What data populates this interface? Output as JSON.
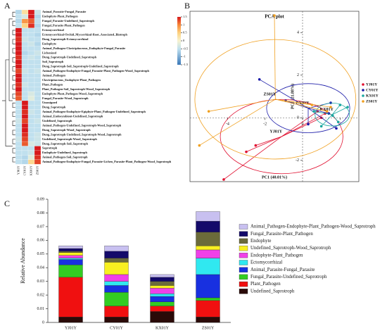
{
  "panel_labels": [
    "A",
    "B",
    "C"
  ],
  "chart_data": [
    {
      "type": "heatmap",
      "rows": [
        "Animal_Parasite-Fungal_Parasite",
        "Endophyte-Plant_Pathogen",
        "Fungal_Parasite-Undefined_Saprotroph",
        "Fungal_Parasite-Plant_Pathogen",
        "Ectomycorrhizal",
        "Ectomycorrhizal-Orchid_Mycorrhizal-Root_Associated_Biotroph",
        "Dung_Saprotroph-Ectomycorrhizal",
        "Endophyte",
        "Animal_Pathogen-Clavicipitaceous_Endophyte-Fungal_Parasite",
        "Lichenized",
        "Dung_Saprotroph-Undefined_Saprotroph",
        "Soil_Saprotroph",
        "Dung_Saprotroph-Soil_Saprotroph-Undefined_Saprotroph",
        "Animal_Pathogen-Endophyte-Fungal_Parasite-Plant_Pathogen-Wood_Saprotroph",
        "Animal_Pathogen",
        "Clavicipitaceous_Endophyte-Plant_Pathogen",
        "Plant_Pathogen",
        "Plant_Pathogen-Soil_Saprotroph-Wood_Saprotroph",
        "Endophyte-Plant_Pathogen-Wood_Saprotroph",
        "Fungal_Parasite-Wood_Saprotroph",
        "Unassigned",
        "Dung_Saprotroph",
        "Animal_Pathogen-Endophyte-Epiphyte-Plant_Pathogen-Undefined_Saprotroph",
        "Animal_Endosymbiont-Undefined_Saprotroph",
        "Undefined_Saprotroph",
        "Animal_Pathogen-Undefined_Saprotroph-Wood_Saprotroph",
        "Dung_Saprotroph-Wood_Saprotroph",
        "Dung_Saprotroph-Undefined_Saprotroph-Wood_Saprotroph",
        "Undefined_Saprotroph-Wood_Saprotroph",
        "Dung_Saprotroph-Soil_Saprotroph",
        "Saprotroph",
        "Endophyte-Undefined_Saprotroph",
        "Animal_Pathogen-Soil_Saprotroph",
        "Animal_Pathogen-Endophyte-Fungal_Parasite-Lichen_Parasite-Plant_Pathogen-Wood_Saprotroph"
      ],
      "columns": [
        "YJ01Y",
        "CY01Y",
        "KX01Y",
        "ZS01Y"
      ],
      "values": [
        [
          -0.6,
          0.3,
          1.5,
          -0.4
        ],
        [
          -0.5,
          -0.3,
          1.5,
          -0.6
        ],
        [
          -0.6,
          0.9,
          1.2,
          -0.5
        ],
        [
          -0.5,
          0.5,
          1.4,
          -0.6
        ],
        [
          1.5,
          -0.5,
          -0.5,
          -0.5
        ],
        [
          1.5,
          -0.5,
          -0.5,
          -0.6
        ],
        [
          1.4,
          -0.4,
          -0.5,
          -0.5
        ],
        [
          1.5,
          -0.5,
          -0.4,
          -0.6
        ],
        [
          1.5,
          -0.5,
          -0.5,
          -0.5
        ],
        [
          1.5,
          -0.6,
          -0.5,
          -0.4
        ],
        [
          1.4,
          -0.5,
          -0.4,
          -0.5
        ],
        [
          1.5,
          -0.5,
          -0.5,
          -0.5
        ],
        [
          1.5,
          -0.5,
          -0.5,
          -0.5
        ],
        [
          1.3,
          -0.4,
          -0.5,
          -0.4
        ],
        [
          1.5,
          -0.5,
          -0.5,
          -0.5
        ],
        [
          1.5,
          -0.5,
          -0.5,
          -0.5
        ],
        [
          1.4,
          -0.4,
          -0.5,
          -0.5
        ],
        [
          1.5,
          -0.5,
          -0.5,
          -0.5
        ],
        [
          1.3,
          -0.5,
          -0.3,
          -0.5
        ],
        [
          1.2,
          -0.5,
          -0.2,
          -0.5
        ],
        [
          -0.5,
          1.5,
          -0.5,
          -0.5
        ],
        [
          -0.5,
          1.5,
          -0.5,
          -0.5
        ],
        [
          -0.5,
          1.4,
          -0.4,
          -0.5
        ],
        [
          -0.5,
          1.5,
          -0.5,
          -0.5
        ],
        [
          -0.4,
          1.3,
          -0.5,
          -0.4
        ],
        [
          -0.5,
          1.5,
          -0.5,
          -0.5
        ],
        [
          -0.5,
          1.5,
          -0.5,
          -0.5
        ],
        [
          -0.5,
          1.4,
          -0.5,
          -0.4
        ],
        [
          -0.4,
          1.3,
          -0.5,
          -0.4
        ],
        [
          -0.5,
          1.2,
          -0.3,
          -0.4
        ],
        [
          -0.5,
          -0.5,
          -0.5,
          1.5
        ],
        [
          -0.5,
          -0.5,
          -0.4,
          1.5
        ],
        [
          -0.5,
          -0.6,
          -0.2,
          1.4
        ],
        [
          -0.5,
          -0.6,
          0.4,
          1.3
        ]
      ],
      "zlim": [
        -1.5,
        1.5
      ],
      "colorbar_ticks": [
        1.5,
        1,
        0.5,
        0,
        -0.5,
        -1,
        -1.5
      ]
    },
    {
      "type": "scatter",
      "title": "PCA plot",
      "xlabel": "PC1 (40.01%)",
      "ylabel": "PC2 (21.88%)",
      "xlim": [
        -6,
        3
      ],
      "ylim": [
        -3,
        5
      ],
      "xticks": [
        -4,
        -2,
        0,
        2
      ],
      "yticks": [
        -2,
        0,
        2,
        4
      ],
      "series": [
        {
          "name": "YJ01Y",
          "color": "#e01030",
          "x": [
            -4.2,
            -3.0,
            -2.5,
            0.8,
            1.0,
            1.2
          ],
          "y": [
            -2.9,
            -1.6,
            -1.3,
            0.3,
            0.0,
            0.2
          ]
        },
        {
          "name": "CY01Y",
          "color": "#1a1aa8",
          "x": [
            -2.3,
            -0.9,
            0.3,
            1.5,
            1.8,
            1.4
          ],
          "y": [
            1.8,
            0.8,
            -0.3,
            0.7,
            -0.5,
            0.2
          ]
        },
        {
          "name": "KX01Y",
          "color": "#1aa7a0",
          "x": [
            1.6,
            2.0,
            1.0,
            0.6,
            2.4,
            1.9
          ],
          "y": [
            0.1,
            0.6,
            -0.4,
            0.3,
            0.5,
            -0.2
          ]
        },
        {
          "name": "ZS01Y",
          "color": "#f0a020",
          "x": [
            -1.5,
            -5.5,
            -5.0,
            1.3,
            1.5,
            0.5
          ],
          "y": [
            4.8,
            -1.3,
            0.3,
            0.3,
            0.5,
            0.6
          ]
        }
      ]
    },
    {
      "type": "stacked_bar",
      "ylabel": "Relative Abundance",
      "categories": [
        "YJ01Y",
        "CY01Y",
        "KX01Y",
        "ZS01Y"
      ],
      "ylim": [
        0,
        0.09
      ],
      "yticks": [
        0,
        0.01,
        0.02,
        0.03,
        0.04,
        0.05,
        0.06,
        0.07,
        0.08,
        0.09
      ],
      "series": [
        {
          "name": "Undefined_Saprotroph",
          "color": "#2a0a08",
          "values": [
            0.004,
            0.004,
            0.008,
            0.004
          ]
        },
        {
          "name": "Plant_Pathogen",
          "color": "#f01010",
          "values": [
            0.029,
            0.008,
            0.004,
            0.012
          ]
        },
        {
          "name": "Fungal_Parasite-Undefined_Saprotroph",
          "color": "#33cc22",
          "values": [
            0.009,
            0.01,
            0.003,
            0.002
          ]
        },
        {
          "name": "Animal_Parasite-Fungal_Parasite",
          "color": "#1830e0",
          "values": [
            0.004,
            0.005,
            0.004,
            0.017
          ]
        },
        {
          "name": "Ectomycorrhizal",
          "color": "#30e8f0",
          "values": [
            0.001,
            0.003,
            0.002,
            0.012
          ]
        },
        {
          "name": "Endophyte-Plant_Pathogen",
          "color": "#f040e8",
          "values": [
            0.002,
            0.005,
            0.004,
            0.006
          ]
        },
        {
          "name": "Undefined_Saprotroph-Wood_Saprotroph",
          "color": "#f8f020",
          "values": [
            0.002,
            0.009,
            0.002,
            0.003
          ]
        },
        {
          "name": "Endophyte",
          "color": "#6b6b3a",
          "values": [
            0.001,
            0.003,
            0.003,
            0.01
          ]
        },
        {
          "name": "Fungal_Parasite-Plant_Pathogen",
          "color": "#140a6a",
          "values": [
            0.002,
            0.005,
            0.003,
            0.008
          ]
        },
        {
          "name": "Animal_Pathogen-Endophyte-Plant_Pathogen-Wood_Saprotroph",
          "color": "#c8c0f0",
          "values": [
            0.002,
            0.004,
            0.002,
            0.007
          ]
        }
      ]
    }
  ]
}
